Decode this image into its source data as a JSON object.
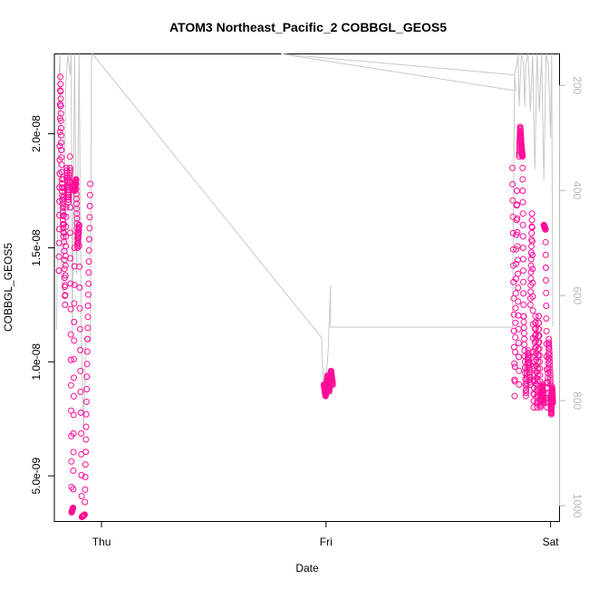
{
  "chart_data": {
    "type": "scatter",
    "title": "ATOM3 Northeast_Pacific_2 COBBGL_GEOS5",
    "xlabel": "Date",
    "ylabel": "COBBGL_GEOS5",
    "x_ticks": [
      "Thu",
      "Fri",
      "Sat"
    ],
    "x_range_days": [
      -0.21,
      2.04
    ],
    "ylim": [
      3e-09,
      2.35e-08
    ],
    "y_ticks": [
      {
        "value": 5e-09,
        "label": "5.0e-09"
      },
      {
        "value": 1e-08,
        "label": "1.0e-08"
      },
      {
        "value": 1.5e-08,
        "label": "1.5e-08"
      },
      {
        "value": 2e-08,
        "label": "2.0e-08"
      }
    ],
    "y2_label_hidden": "pressure",
    "y2_lim": [
      1030,
      140
    ],
    "y2_ticks": [
      200,
      400,
      600,
      800,
      1000
    ],
    "colors": {
      "points": "#ff1493",
      "points_alt": "#ff00a0",
      "pressure_line": "#c8c8c8",
      "right_axis": "#b8b8b8"
    },
    "point_segments": [
      {
        "t0": -0.19,
        "t1": -0.17,
        "ys": [
          1.4e-08,
          2.25e-08,
          1.8e-08,
          1.55e-08
        ]
      },
      {
        "t0": -0.17,
        "t1": -0.14,
        "ys": [
          1.8e-08,
          1.25e-08,
          1.85e-08,
          1.7e-08,
          1.85e-08
        ]
      },
      {
        "t0": -0.14,
        "t1": -0.12,
        "ys": [
          1.9e-08,
          3.4e-09,
          3.6e-09,
          1.5e-08
        ]
      },
      {
        "t0": -0.12,
        "t1": -0.1,
        "ys": [
          1.75e-08,
          1.8e-08,
          1.5e-08,
          1.6e-08
        ]
      },
      {
        "t0": -0.1,
        "t1": -0.05,
        "ys": [
          1.6e-08,
          3.2e-09,
          3.3e-09,
          1.1e-08,
          1.78e-08
        ]
      },
      {
        "t0": 0.99,
        "t1": 1.03,
        "ys": [
          9e-09,
          8.5e-09,
          9.4e-09,
          8.7e-09,
          9.6e-09,
          9e-09
        ]
      },
      {
        "t0": 1.83,
        "t1": 1.86,
        "ys": [
          1.85e-08,
          8.5e-09,
          1.75e-08,
          9e-09
        ]
      },
      {
        "t0": 1.86,
        "t1": 1.88,
        "ys": [
          1.9e-08,
          2.03e-08,
          1.95e-08,
          1.9e-08,
          1.2e-08
        ]
      },
      {
        "t0": 1.88,
        "t1": 1.91,
        "ys": [
          1.2e-08,
          8.5e-09,
          1.05e-08,
          9e-09
        ]
      },
      {
        "t0": 1.91,
        "t1": 1.94,
        "ys": [
          1.25e-08,
          1.65e-08,
          8e-09,
          1.2e-08,
          8.2e-09
        ]
      },
      {
        "t0": 1.94,
        "t1": 1.97,
        "ys": [
          8e-09,
          1.2e-08,
          8e-09,
          9e-09,
          8.2e-09
        ]
      },
      {
        "t0": 1.97,
        "t1": 2.0,
        "ys": [
          1.6e-08,
          1.58e-08,
          8e-09,
          1.1e-08,
          9e-09
        ]
      },
      {
        "t0": 2.0,
        "t1": 2.01,
        "ys": [
          8.5e-09,
          7.7e-09,
          8.9e-09,
          8.2e-09
        ]
      }
    ],
    "pressure_path": [
      [
        -0.2,
        665
      ],
      [
        -0.19,
        180
      ],
      [
        -0.185,
        120
      ],
      [
        -0.18,
        560
      ],
      [
        -0.17,
        600
      ],
      [
        -0.16,
        200
      ],
      [
        -0.15,
        120
      ],
      [
        -0.14,
        180
      ],
      [
        -0.135,
        120
      ],
      [
        -0.13,
        680
      ],
      [
        -0.12,
        120
      ],
      [
        -0.11,
        560
      ],
      [
        -0.1,
        120
      ],
      [
        -0.09,
        680
      ],
      [
        -0.08,
        860
      ],
      [
        -0.07,
        680
      ],
      [
        -0.05,
        690
      ],
      [
        -0.045,
        150
      ],
      [
        -0.04,
        130
      ],
      [
        0.98,
        680
      ],
      [
        0.99,
        790
      ],
      [
        1.0,
        760
      ],
      [
        1.01,
        700
      ],
      [
        1.02,
        580
      ],
      [
        1.02,
        660
      ],
      [
        1.83,
        660
      ],
      [
        1.84,
        180
      ],
      [
        1.845,
        210
      ],
      [
        0.8,
        130
      ],
      [
        1.84,
        180
      ],
      [
        1.85,
        160
      ],
      [
        1.855,
        140
      ],
      [
        1.86,
        240
      ],
      [
        1.87,
        120
      ],
      [
        1.88,
        160
      ],
      [
        1.885,
        240
      ],
      [
        1.89,
        160
      ],
      [
        1.9,
        140
      ],
      [
        1.91,
        250
      ],
      [
        1.92,
        130
      ],
      [
        1.93,
        360
      ],
      [
        1.94,
        140
      ],
      [
        1.95,
        250
      ],
      [
        1.96,
        130
      ],
      [
        1.97,
        380
      ],
      [
        1.98,
        130
      ],
      [
        1.99,
        160
      ],
      [
        2.0,
        300
      ],
      [
        2.005,
        130
      ],
      [
        2.01,
        660
      ]
    ]
  }
}
